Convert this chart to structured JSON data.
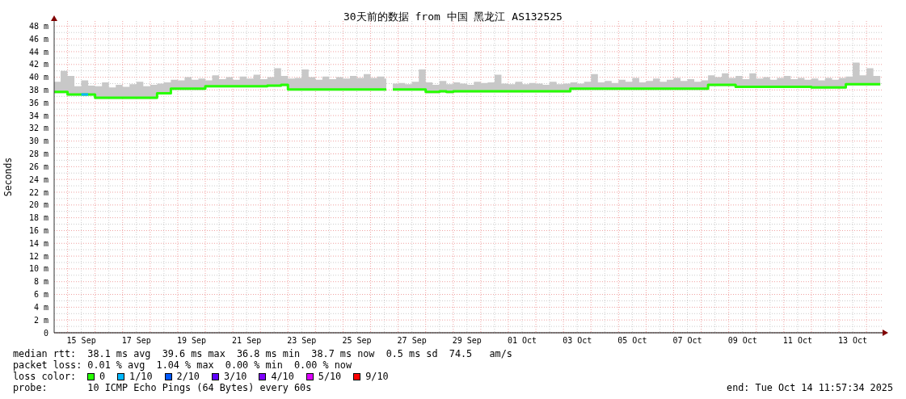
{
  "chart_data": {
    "type": "step",
    "title": "30天前的数据 from 中国 黑龙江 AS132525",
    "ylabel": "Seconds",
    "legend_title": "loss color:",
    "legend": "bottom",
    "grid": true,
    "x": [
      "2025-09-14T12:20",
      "2025-09-14T18:00",
      "2025-09-15T00:00",
      "2025-09-15T06:00",
      "2025-09-15T12:00",
      "2025-09-15T18:00",
      "2025-09-16T00:00",
      "2025-09-16T06:00",
      "2025-09-16T12:00",
      "2025-09-16T18:00",
      "2025-09-17T00:00",
      "2025-09-17T06:00",
      "2025-09-17T12:00",
      "2025-09-17T18:00",
      "2025-09-18T00:00",
      "2025-09-18T06:00",
      "2025-09-18T12:00",
      "2025-09-18T18:00",
      "2025-09-19T00:00",
      "2025-09-19T06:00",
      "2025-09-19T12:00",
      "2025-09-19T18:00",
      "2025-09-20T00:00",
      "2025-09-20T06:00",
      "2025-09-20T12:00",
      "2025-09-20T18:00",
      "2025-09-21T00:00",
      "2025-09-21T06:00",
      "2025-09-21T12:00",
      "2025-09-21T18:00",
      "2025-09-22T00:00",
      "2025-09-22T06:00",
      "2025-09-22T12:00",
      "2025-09-22T18:00",
      "2025-09-23T00:00",
      "2025-09-23T06:00",
      "2025-09-23T12:00",
      "2025-09-23T18:00",
      "2025-09-24T00:00",
      "2025-09-24T06:00",
      "2025-09-24T12:00",
      "2025-09-24T18:00",
      "2025-09-25T00:00",
      "2025-09-25T06:00",
      "2025-09-25T12:00",
      "2025-09-25T18:00",
      "2025-09-26T00:00",
      "2025-09-26T06:00",
      "2025-09-26T12:00",
      "2025-09-26T13:40",
      "2025-09-26T16:30",
      "2025-09-26T19:20",
      "2025-09-27T00:00",
      "2025-09-27T06:00",
      "2025-09-27T12:00",
      "2025-09-27T18:00",
      "2025-09-28T00:00",
      "2025-09-28T06:00",
      "2025-09-28T12:00",
      "2025-09-28T18:00",
      "2025-09-29T00:00",
      "2025-09-29T06:00",
      "2025-09-29T12:00",
      "2025-09-29T18:00",
      "2025-09-30T00:00",
      "2025-09-30T06:00",
      "2025-09-30T12:00",
      "2025-09-30T18:00",
      "2025-10-01T00:00",
      "2025-10-01T06:00",
      "2025-10-01T12:00",
      "2025-10-01T18:00",
      "2025-10-02T00:00",
      "2025-10-02T06:00",
      "2025-10-02T12:00",
      "2025-10-02T18:00",
      "2025-10-03T00:00",
      "2025-10-03T06:00",
      "2025-10-03T12:00",
      "2025-10-03T18:00",
      "2025-10-04T00:00",
      "2025-10-04T06:00",
      "2025-10-04T12:00",
      "2025-10-04T18:00",
      "2025-10-05T00:00",
      "2025-10-05T06:00",
      "2025-10-05T12:00",
      "2025-10-05T18:00",
      "2025-10-06T00:00",
      "2025-10-06T06:00",
      "2025-10-06T12:00",
      "2025-10-06T18:00",
      "2025-10-07T00:00",
      "2025-10-07T06:00",
      "2025-10-07T12:00",
      "2025-10-07T18:00",
      "2025-10-08T00:00",
      "2025-10-08T06:00",
      "2025-10-08T12:00",
      "2025-10-08T18:00",
      "2025-10-09T00:00",
      "2025-10-09T06:00",
      "2025-10-09T12:00",
      "2025-10-09T18:00",
      "2025-10-10T00:00",
      "2025-10-10T06:00",
      "2025-10-10T12:00",
      "2025-10-10T18:00",
      "2025-10-11T00:00",
      "2025-10-11T06:00",
      "2025-10-11T12:00",
      "2025-10-11T18:00",
      "2025-10-12T00:00",
      "2025-10-12T06:00",
      "2025-10-12T12:00",
      "2025-10-12T18:00",
      "2025-10-13T00:00",
      "2025-10-13T06:00",
      "2025-10-13T12:00",
      "2025-10-13T18:00",
      "2025-10-14T00:00",
      "2025-10-14T06:00",
      "2025-10-14T12:00"
    ],
    "xlim": [
      "2025-09-14T12:20",
      "2025-10-14T14:00"
    ],
    "xticks": [
      {
        "value": "2025-09-15",
        "label": null
      },
      {
        "value": "2025-09-15T12:00",
        "label": "15 Sep"
      },
      {
        "value": "2025-09-16",
        "label": null
      },
      {
        "value": "2025-09-16T12:00",
        "label": null
      },
      {
        "value": "2025-09-17",
        "label": null
      },
      {
        "value": "2025-09-17T12:00",
        "label": "17 Sep"
      },
      {
        "value": "2025-09-18",
        "label": null
      },
      {
        "value": "2025-09-18T12:00",
        "label": null
      },
      {
        "value": "2025-09-19",
        "label": null
      },
      {
        "value": "2025-09-19T12:00",
        "label": "19 Sep"
      },
      {
        "value": "2025-09-20",
        "label": null
      },
      {
        "value": "2025-09-20T12:00",
        "label": null
      },
      {
        "value": "2025-09-21",
        "label": null
      },
      {
        "value": "2025-09-21T12:00",
        "label": "21 Sep"
      },
      {
        "value": "2025-09-22",
        "label": null
      },
      {
        "value": "2025-09-22T12:00",
        "label": null
      },
      {
        "value": "2025-09-23",
        "label": null
      },
      {
        "value": "2025-09-23T12:00",
        "label": "23 Sep"
      },
      {
        "value": "2025-09-24",
        "label": null
      },
      {
        "value": "2025-09-24T12:00",
        "label": null
      },
      {
        "value": "2025-09-25",
        "label": null
      },
      {
        "value": "2025-09-25T12:00",
        "label": "25 Sep"
      },
      {
        "value": "2025-09-26",
        "label": null
      },
      {
        "value": "2025-09-26T12:00",
        "label": null
      },
      {
        "value": "2025-09-27",
        "label": null
      },
      {
        "value": "2025-09-27T12:00",
        "label": "27 Sep"
      },
      {
        "value": "2025-09-28",
        "label": null
      },
      {
        "value": "2025-09-28T12:00",
        "label": null
      },
      {
        "value": "2025-09-29",
        "label": null
      },
      {
        "value": "2025-09-29T12:00",
        "label": "29 Sep"
      },
      {
        "value": "2025-09-30",
        "label": null
      },
      {
        "value": "2025-09-30T12:00",
        "label": null
      },
      {
        "value": "2025-10-01",
        "label": null
      },
      {
        "value": "2025-10-01T12:00",
        "label": "01 Oct"
      },
      {
        "value": "2025-10-02",
        "label": null
      },
      {
        "value": "2025-10-02T12:00",
        "label": null
      },
      {
        "value": "2025-10-03",
        "label": null
      },
      {
        "value": "2025-10-03T12:00",
        "label": "03 Oct"
      },
      {
        "value": "2025-10-04",
        "label": null
      },
      {
        "value": "2025-10-04T12:00",
        "label": null
      },
      {
        "value": "2025-10-05",
        "label": null
      },
      {
        "value": "2025-10-05T12:00",
        "label": "05 Oct"
      },
      {
        "value": "2025-10-06",
        "label": null
      },
      {
        "value": "2025-10-06T12:00",
        "label": null
      },
      {
        "value": "2025-10-07",
        "label": null
      },
      {
        "value": "2025-10-07T12:00",
        "label": "07 Oct"
      },
      {
        "value": "2025-10-08",
        "label": null
      },
      {
        "value": "2025-10-08T12:00",
        "label": null
      },
      {
        "value": "2025-10-09",
        "label": null
      },
      {
        "value": "2025-10-09T12:00",
        "label": "09 Oct"
      },
      {
        "value": "2025-10-10",
        "label": null
      },
      {
        "value": "2025-10-10T12:00",
        "label": null
      },
      {
        "value": "2025-10-11",
        "label": null
      },
      {
        "value": "2025-10-11T12:00",
        "label": "11 Oct"
      },
      {
        "value": "2025-10-12",
        "label": null
      },
      {
        "value": "2025-10-12T12:00",
        "label": null
      },
      {
        "value": "2025-10-13",
        "label": null
      },
      {
        "value": "2025-10-13T12:00",
        "label": "13 Oct"
      },
      {
        "value": "2025-10-14",
        "label": null
      }
    ],
    "ylim": [
      0,
      48.8
    ],
    "yticks": [
      0,
      {
        "value": 1,
        "label": null
      },
      {
        "value": 2,
        "label": "2 m"
      },
      {
        "value": 3,
        "label": null
      },
      {
        "value": 4,
        "label": "4 m"
      },
      {
        "value": 5,
        "label": null
      },
      {
        "value": 6,
        "label": "6 m"
      },
      {
        "value": 7,
        "label": null
      },
      {
        "value": 8,
        "label": "8 m"
      },
      {
        "value": 9,
        "label": null
      },
      {
        "value": 10,
        "label": "10 m"
      },
      {
        "value": 11,
        "label": null
      },
      {
        "value": 12,
        "label": "12 m"
      },
      {
        "value": 13,
        "label": null
      },
      {
        "value": 14,
        "label": "14 m"
      },
      {
        "value": 15,
        "label": null
      },
      {
        "value": 16,
        "label": "16 m"
      },
      {
        "value": 17,
        "label": null
      },
      {
        "value": 18,
        "label": "18 m"
      },
      {
        "value": 19,
        "label": null
      },
      {
        "value": 20,
        "label": "20 m"
      },
      {
        "value": 21,
        "label": null
      },
      {
        "value": 22,
        "label": "22 m"
      },
      {
        "value": 23,
        "label": null
      },
      {
        "value": 24,
        "label": "24 m"
      },
      {
        "value": 25,
        "label": null
      },
      {
        "value": 26,
        "label": "26 m"
      },
      {
        "value": 27,
        "label": null
      },
      {
        "value": 28,
        "label": "28 m"
      },
      {
        "value": 29,
        "label": null
      },
      {
        "value": 30,
        "label": "30 m"
      },
      {
        "value": 31,
        "label": null
      },
      {
        "value": 32,
        "label": "32 m"
      },
      {
        "value": 33,
        "label": null
      },
      {
        "value": 34,
        "label": "34 m"
      },
      {
        "value": 35,
        "label": null
      },
      {
        "value": 36,
        "label": "36 m"
      },
      {
        "value": 37,
        "label": null
      },
      {
        "value": 38,
        "label": "38 m"
      },
      {
        "value": 39,
        "label": null
      },
      {
        "value": 40,
        "label": "40 m"
      },
      {
        "value": 41,
        "label": null
      },
      {
        "value": 42,
        "label": "42 m"
      },
      {
        "value": 43,
        "label": null
      },
      {
        "value": 44,
        "label": "44 m"
      },
      {
        "value": 45,
        "label": null
      },
      {
        "value": 46,
        "label": "46 m"
      },
      {
        "value": 47,
        "label": null
      },
      {
        "value": 48,
        "label": "48 m"
      }
    ],
    "series": [
      {
        "name": "0",
        "color": "#26ff00",
        "values": [
          37.7,
          37.7,
          37.3,
          37.3,
          37.3,
          37.3,
          36.8,
          36.8,
          36.8,
          36.8,
          36.8,
          36.8,
          36.8,
          36.8,
          36.8,
          37.5,
          37.5,
          38.2,
          38.2,
          38.2,
          38.2,
          38.2,
          38.6,
          38.6,
          38.6,
          38.6,
          38.6,
          38.6,
          38.6,
          38.6,
          38.6,
          38.7,
          38.7,
          38.8,
          38.1,
          38.1,
          38.1,
          38.1,
          38.1,
          38.1,
          38.1,
          38.1,
          38.1,
          38.1,
          38.1,
          38.1,
          38.1,
          38.1,
          38.1,
          38.1,
          null,
          38.1,
          38.1,
          38.1,
          38.1,
          38.1,
          37.7,
          37.7,
          37.8,
          37.7,
          37.8,
          37.8,
          37.8,
          37.8,
          37.8,
          37.8,
          37.8,
          37.8,
          37.8,
          37.8,
          37.8,
          37.8,
          37.8,
          37.8,
          37.8,
          37.8,
          37.8,
          38.2,
          38.2,
          38.2,
          38.2,
          38.2,
          38.2,
          38.2,
          38.2,
          38.2,
          38.2,
          38.2,
          38.2,
          38.2,
          38.2,
          38.2,
          38.2,
          38.2,
          38.2,
          38.2,
          38.2,
          38.8,
          38.8,
          38.8,
          38.8,
          38.5,
          38.5,
          38.5,
          38.5,
          38.5,
          38.5,
          38.5,
          38.5,
          38.5,
          38.5,
          38.5,
          38.4,
          38.4,
          38.4,
          38.4,
          38.4,
          38.9,
          38.9,
          38.9,
          38.9,
          38.9,
          38.9
        ],
        "lower": [
          37.5,
          37.5,
          37.1,
          37.1,
          37.1,
          37.1,
          36.6,
          36.6,
          36.6,
          36.6,
          36.6,
          36.6,
          36.6,
          36.6,
          36.6,
          37.3,
          37.3,
          38.0,
          38.0,
          38.0,
          38.0,
          38.0,
          38.4,
          38.4,
          38.4,
          38.4,
          38.4,
          38.4,
          38.4,
          38.4,
          38.4,
          38.5,
          38.5,
          38.6,
          37.9,
          37.9,
          37.9,
          37.9,
          37.9,
          37.9,
          37.9,
          37.9,
          37.9,
          37.9,
          37.9,
          37.9,
          37.9,
          37.9,
          37.9,
          37.9,
          null,
          37.9,
          37.9,
          37.9,
          37.9,
          37.9,
          37.5,
          37.5,
          37.6,
          37.5,
          37.6,
          37.6,
          37.6,
          37.6,
          37.6,
          37.6,
          37.6,
          37.6,
          37.6,
          37.6,
          37.6,
          37.6,
          37.6,
          37.6,
          37.6,
          37.6,
          37.6,
          38.0,
          38.0,
          38.0,
          38.0,
          38.0,
          38.0,
          38.0,
          38.0,
          38.0,
          38.0,
          38.0,
          38.0,
          38.0,
          38.0,
          38.0,
          38.0,
          38.0,
          38.0,
          38.0,
          38.0,
          38.6,
          38.6,
          38.6,
          38.6,
          38.3,
          38.3,
          38.3,
          38.3,
          38.3,
          38.3,
          38.3,
          38.3,
          38.3,
          38.3,
          38.3,
          38.2,
          38.2,
          38.2,
          38.2,
          38.2,
          38.7,
          38.7,
          38.7,
          38.7,
          38.7,
          38.7
        ],
        "upper": [
          39.3,
          41.0,
          40.2,
          38.6,
          39.5,
          38.7,
          38.6,
          39.2,
          38.4,
          38.8,
          38.5,
          38.9,
          39.3,
          38.6,
          38.8,
          39.0,
          39.2,
          39.6,
          39.5,
          40.0,
          39.6,
          39.8,
          39.5,
          40.3,
          39.7,
          40.0,
          39.6,
          40.1,
          39.8,
          40.4,
          39.7,
          40.0,
          41.4,
          40.2,
          39.8,
          39.9,
          41.2,
          40.0,
          39.6,
          40.1,
          39.7,
          40.0,
          39.8,
          40.2,
          39.9,
          40.5,
          39.9,
          40.1,
          39.8,
          39.6,
          null,
          39.0,
          39.1,
          38.9,
          39.3,
          41.2,
          39.2,
          38.8,
          39.4,
          38.9,
          39.2,
          39.0,
          38.8,
          39.3,
          39.1,
          39.2,
          40.4,
          39.0,
          38.9,
          39.3,
          38.9,
          39.1,
          39.0,
          38.8,
          39.3,
          38.9,
          39.0,
          39.2,
          39.0,
          39.3,
          40.5,
          39.2,
          39.4,
          39.1,
          39.6,
          39.3,
          39.9,
          39.2,
          39.4,
          39.8,
          39.3,
          39.6,
          39.9,
          39.4,
          39.7,
          39.3,
          39.5,
          40.3,
          40.0,
          40.6,
          39.9,
          40.2,
          39.7,
          40.6,
          39.8,
          40.0,
          39.6,
          39.9,
          40.2,
          39.7,
          39.9,
          39.6,
          39.8,
          39.5,
          39.9,
          39.6,
          39.9,
          40.1,
          42.3,
          40.3,
          41.4,
          40.2,
          41.0
        ]
      },
      {
        "name": "1/10",
        "color": "#00b8ff",
        "x": [
          "2025-09-15T12:00",
          "2025-09-15T18:00"
        ],
        "values": [
          37.3,
          37.3
        ]
      },
      {
        "name": "2/10",
        "color": "#0059ff",
        "values": [
          null,
          null,
          null,
          null,
          null,
          null,
          null,
          null,
          null,
          null,
          null,
          null,
          null,
          null,
          null,
          null,
          null,
          null,
          null,
          null,
          null,
          null,
          null,
          null,
          null,
          null,
          null,
          null,
          null,
          null,
          null,
          null,
          null,
          null,
          null,
          null,
          null,
          null,
          null,
          null,
          null,
          null,
          null,
          null,
          null,
          null,
          null,
          null,
          null,
          null,
          null,
          null,
          null,
          null,
          null,
          null,
          null,
          null,
          null,
          null,
          null,
          null,
          null,
          null,
          null,
          null,
          null,
          null,
          null,
          null,
          null,
          null,
          null,
          null,
          null,
          null,
          null,
          null,
          null,
          null,
          null,
          null,
          null,
          null,
          null,
          null,
          null,
          null,
          null,
          null,
          null,
          null,
          null,
          null,
          null,
          null,
          null,
          null,
          null,
          null,
          null,
          null,
          null,
          null,
          null,
          null,
          null,
          null,
          null,
          null,
          null,
          null,
          null,
          null,
          null,
          null,
          null,
          null,
          null,
          null,
          null,
          null,
          null
        ]
      },
      {
        "name": "3/10",
        "color": "#5e00ff",
        "values": [
          null,
          null,
          null,
          null,
          null,
          null,
          null,
          null,
          null,
          null,
          null,
          null,
          null,
          null,
          null,
          null,
          null,
          null,
          null,
          null,
          null,
          null,
          null,
          null,
          null,
          null,
          null,
          null,
          null,
          null,
          null,
          null,
          null,
          null,
          null,
          null,
          null,
          null,
          null,
          null,
          null,
          null,
          null,
          null,
          null,
          null,
          null,
          null,
          null,
          null,
          null,
          null,
          null,
          null,
          null,
          null,
          null,
          null,
          null,
          null,
          null,
          null,
          null,
          null,
          null,
          null,
          null,
          null,
          null,
          null,
          null,
          null,
          null,
          null,
          null,
          null,
          null,
          null,
          null,
          null,
          null,
          null,
          null,
          null,
          null,
          null,
          null,
          null,
          null,
          null,
          null,
          null,
          null,
          null,
          null,
          null,
          null,
          null,
          null,
          null,
          null,
          null,
          null,
          null,
          null,
          null,
          null,
          null,
          null,
          null,
          null,
          null,
          null,
          null,
          null,
          null,
          null,
          null,
          null,
          null,
          null,
          null,
          null
        ]
      },
      {
        "name": "4/10",
        "color": "#7e00ff",
        "values": [
          null,
          null,
          null,
          null,
          null,
          null,
          null,
          null,
          null,
          null,
          null,
          null,
          null,
          null,
          null,
          null,
          null,
          null,
          null,
          null,
          null,
          null,
          null,
          null,
          null,
          null,
          null,
          null,
          null,
          null,
          null,
          null,
          null,
          null,
          null,
          null,
          null,
          null,
          null,
          null,
          null,
          null,
          null,
          null,
          null,
          null,
          null,
          null,
          null,
          null,
          null,
          null,
          null,
          null,
          null,
          null,
          null,
          null,
          null,
          null,
          null,
          null,
          null,
          null,
          null,
          null,
          null,
          null,
          null,
          null,
          null,
          null,
          null,
          null,
          null,
          null,
          null,
          null,
          null,
          null,
          null,
          null,
          null,
          null,
          null,
          null,
          null,
          null,
          null,
          null,
          null,
          null,
          null,
          null,
          null,
          null,
          null,
          null,
          null,
          null,
          null,
          null,
          null,
          null,
          null,
          null,
          null,
          null,
          null,
          null,
          null,
          null,
          null,
          null,
          null,
          null,
          null,
          null,
          null,
          null,
          null,
          null,
          null
        ]
      },
      {
        "name": "5/10",
        "color": "#dd00ff",
        "values": [
          null,
          null,
          null,
          null,
          null,
          null,
          null,
          null,
          null,
          null,
          null,
          null,
          null,
          null,
          null,
          null,
          null,
          null,
          null,
          null,
          null,
          null,
          null,
          null,
          null,
          null,
          null,
          null,
          null,
          null,
          null,
          null,
          null,
          null,
          null,
          null,
          null,
          null,
          null,
          null,
          null,
          null,
          null,
          null,
          null,
          null,
          null,
          null,
          null,
          null,
          null,
          null,
          null,
          null,
          null,
          null,
          null,
          null,
          null,
          null,
          null,
          null,
          null,
          null,
          null,
          null,
          null,
          null,
          null,
          null,
          null,
          null,
          null,
          null,
          null,
          null,
          null,
          null,
          null,
          null,
          null,
          null,
          null,
          null,
          null,
          null,
          null,
          null,
          null,
          null,
          null,
          null,
          null,
          null,
          null,
          null,
          null,
          null,
          null,
          null,
          null,
          null,
          null,
          null,
          null,
          null,
          null,
          null,
          null,
          null,
          null,
          null,
          null,
          null,
          null,
          null,
          null,
          null,
          null,
          null,
          null,
          null,
          null
        ]
      },
      {
        "name": "9/10",
        "color": "#ff0000",
        "values": [
          null,
          null,
          null,
          null,
          null,
          null,
          null,
          null,
          null,
          null,
          null,
          null,
          null,
          null,
          null,
          null,
          null,
          null,
          null,
          null,
          null,
          null,
          null,
          null,
          null,
          null,
          null,
          null,
          null,
          null,
          null,
          null,
          null,
          null,
          null,
          null,
          null,
          null,
          null,
          null,
          null,
          null,
          null,
          null,
          null,
          null,
          null,
          null,
          null,
          null,
          null,
          null,
          null,
          null,
          null,
          null,
          null,
          null,
          null,
          null,
          null,
          null,
          null,
          null,
          null,
          null,
          null,
          null,
          null,
          null,
          null,
          null,
          null,
          null,
          null,
          null,
          null,
          null,
          null,
          null,
          null,
          null,
          null,
          null,
          null,
          null,
          null,
          null,
          null,
          null,
          null,
          null,
          null,
          null,
          null,
          null,
          null,
          null,
          null,
          null,
          null,
          null,
          null,
          null,
          null,
          null,
          null,
          null,
          null,
          null,
          null,
          null,
          null,
          null,
          null,
          null,
          null,
          null,
          null,
          null,
          null,
          null,
          null
        ]
      }
    ],
    "annotations": [
      "median rtt:  38.1 ms avg  39.6 ms max  36.8 ms min  38.7 ms now  0.5 ms sd  74.5   am/s",
      "packet loss: 0.01 % avg  1.04 % max  0.00 % min  0.00 % now",
      "probe:       10 ICMP Echo Pings (64 Bytes) every 60s",
      "end: Tue Oct 14 11:57:34 2025"
    ]
  }
}
